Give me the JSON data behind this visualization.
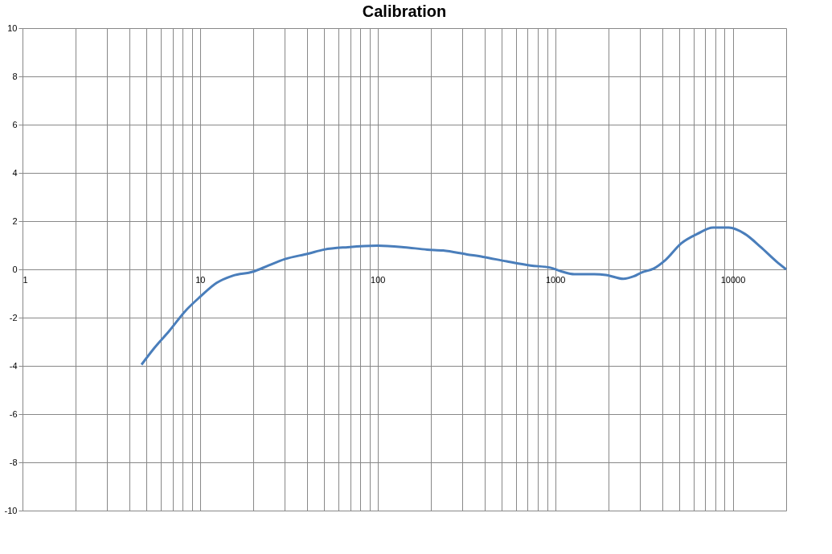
{
  "chart_data": {
    "type": "line",
    "title": "Calibration",
    "log": "x",
    "grid": true,
    "xlim": [
      1,
      20000
    ],
    "ylim": [
      -10,
      10
    ],
    "xticks": [
      1,
      {
        "value": 2,
        "label": null
      },
      {
        "value": 3,
        "label": null
      },
      {
        "value": 4,
        "label": null
      },
      {
        "value": 5,
        "label": null
      },
      {
        "value": 6,
        "label": null
      },
      {
        "value": 7,
        "label": null
      },
      {
        "value": 8,
        "label": null
      },
      {
        "value": 9,
        "label": null
      },
      10,
      {
        "value": 20,
        "label": null
      },
      {
        "value": 30,
        "label": null
      },
      {
        "value": 40,
        "label": null
      },
      {
        "value": 50,
        "label": null
      },
      {
        "value": 60,
        "label": null
      },
      {
        "value": 70,
        "label": null
      },
      {
        "value": 80,
        "label": null
      },
      {
        "value": 90,
        "label": null
      },
      100,
      {
        "value": 200,
        "label": null
      },
      {
        "value": 300,
        "label": null
      },
      {
        "value": 400,
        "label": null
      },
      {
        "value": 500,
        "label": null
      },
      {
        "value": 600,
        "label": null
      },
      {
        "value": 700,
        "label": null
      },
      {
        "value": 800,
        "label": null
      },
      {
        "value": 900,
        "label": null
      },
      1000,
      {
        "value": 2000,
        "label": null
      },
      {
        "value": 3000,
        "label": null
      },
      {
        "value": 4000,
        "label": null
      },
      {
        "value": 5000,
        "label": null
      },
      {
        "value": 6000,
        "label": null
      },
      {
        "value": 7000,
        "label": null
      },
      {
        "value": 8000,
        "label": null
      },
      {
        "value": 9000,
        "label": null
      },
      10000,
      {
        "value": 20000,
        "label": null
      }
    ],
    "yticks": [
      -10,
      -8,
      -6,
      -4,
      -2,
      0,
      2,
      4,
      6,
      8,
      10
    ],
    "series": [
      {
        "color": "#4a7ebb",
        "line_style": "solid",
        "marker": "none",
        "x": [
          4.68,
          5.47,
          6.71,
          8.25,
          10,
          12.4,
          15.3,
          19.8,
          24.3,
          29.9,
          40.6,
          50,
          68,
          100,
          140,
          190,
          234,
          319,
          392,
          533,
          726,
          939,
          1100,
          1280,
          1660,
          1930,
          2420,
          2770,
          3070,
          3580,
          4180,
          5130,
          6310,
          7750,
          9510,
          11700,
          14400,
          17600,
          20000
        ],
        "values": [
          -3.95,
          -3.3,
          -2.55,
          -1.73,
          -1.14,
          -0.56,
          -0.26,
          -0.1,
          0.16,
          0.42,
          0.65,
          0.82,
          0.92,
          0.98,
          0.92,
          0.82,
          0.78,
          0.62,
          0.52,
          0.33,
          0.16,
          0.07,
          -0.1,
          -0.2,
          -0.2,
          -0.23,
          -0.39,
          -0.29,
          -0.13,
          0.03,
          0.39,
          1.08,
          1.47,
          1.73,
          1.73,
          1.47,
          0.92,
          0.33,
          0
        ]
      }
    ]
  }
}
